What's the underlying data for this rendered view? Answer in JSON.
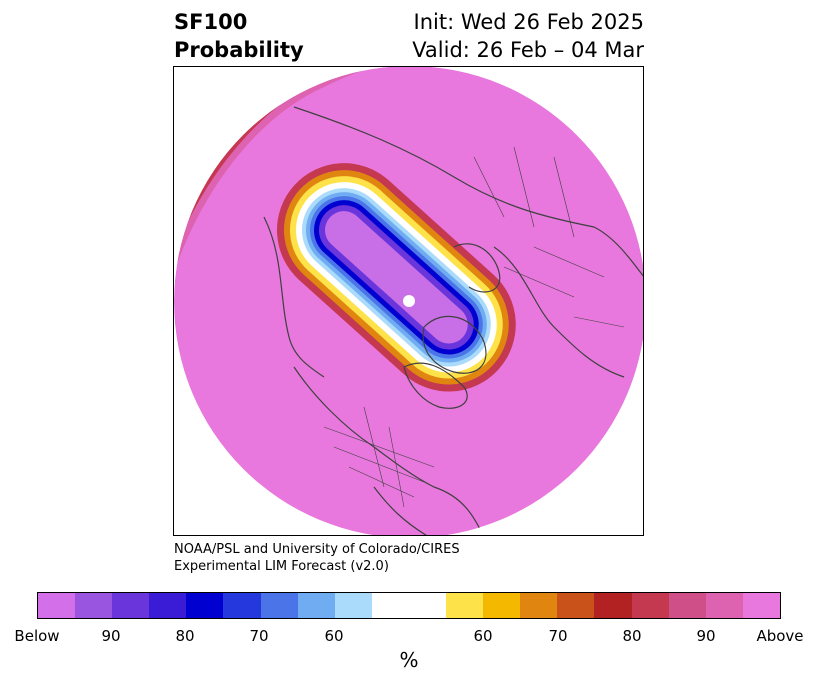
{
  "header": {
    "title_line1": "SF100",
    "title_line2": "Probability",
    "init_text": "Init: Wed 26 Feb 2025",
    "valid_text": "Valid: 26 Feb – 04 Mar"
  },
  "credit": {
    "line1": "NOAA/PSL and University of Colorado/CIRES",
    "line2": "Experimental LIM Forecast (v2.0)"
  },
  "colorbar": {
    "unit_label": "%",
    "tick_labels": [
      "Below",
      "90",
      "80",
      "70",
      "60",
      "60",
      "70",
      "80",
      "90",
      "Above"
    ],
    "colors": [
      "#d36fe8",
      "#9a55e0",
      "#6a36dc",
      "#3a1bd6",
      "#0000d0",
      "#2438de",
      "#4a74e8",
      "#70acf2",
      "#abdbfb",
      "#ffffff",
      "#fde24a",
      "#f4b800",
      "#e08610",
      "#c9521a",
      "#b22222",
      "#c43850",
      "#cf4f88",
      "#dd62b0",
      "#e878dd"
    ]
  },
  "map": {
    "projection": "north-polar-stereographic",
    "field_colors": {
      "above_max": "#e878dd",
      "above_90": "#dd62b0",
      "above_80": "#cf4f88",
      "above_75": "#c43850",
      "above_70": "#b22222",
      "above_65": "#c9521a",
      "above_60": "#e08610",
      "above_55": "#f4b800",
      "above_50": "#fde24a",
      "neutral": "#ffffff",
      "below_55": "#abdbfb",
      "below_60": "#70acf2",
      "below_65": "#4a74e8",
      "below_70": "#2438de",
      "below_75": "#0000d0",
      "below_80": "#3a1bd6",
      "below_90": "#6a36dc",
      "below_max": "#c86fe8",
      "coastline": "#404040"
    }
  }
}
